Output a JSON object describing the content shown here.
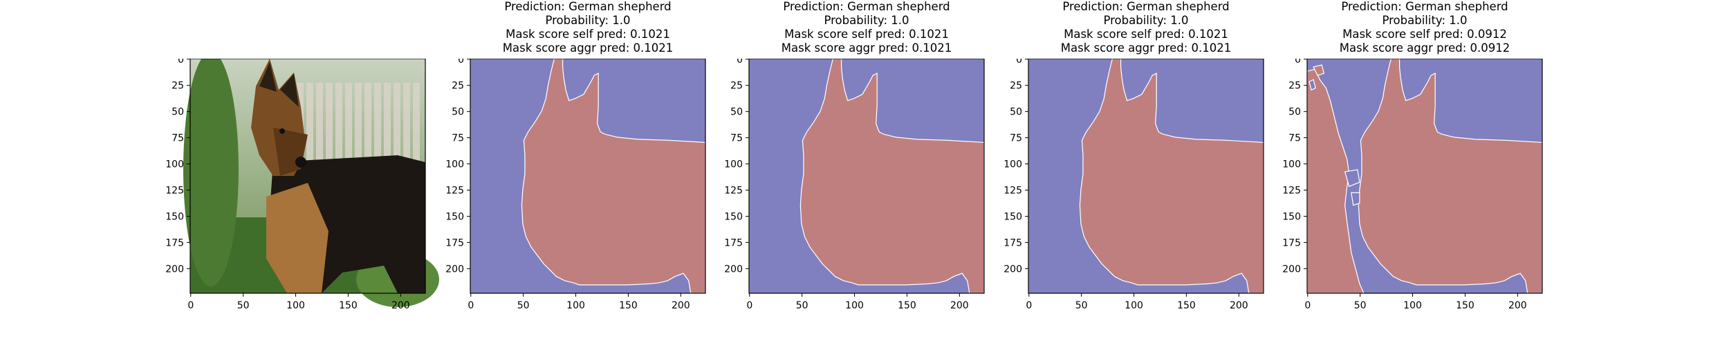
{
  "figure": {
    "panels": [
      {
        "kind": "image",
        "title_lines": [],
        "xticks": [
          "0",
          "50",
          "100",
          "150",
          "200"
        ],
        "yticks": [
          "0",
          "25",
          "50",
          "75",
          "100",
          "125",
          "150",
          "175",
          "200"
        ]
      },
      {
        "kind": "mask",
        "variant": "clean",
        "title_lines": [
          "Prediction: German shepherd",
          "Probability: 1.0",
          "Mask score self pred: 0.1021",
          "Mask score aggr pred: 0.1021"
        ],
        "xticks": [
          "0",
          "50",
          "100",
          "150",
          "200"
        ],
        "yticks": [
          "0",
          "25",
          "50",
          "75",
          "100",
          "125",
          "150",
          "175",
          "200"
        ]
      },
      {
        "kind": "mask",
        "variant": "clean",
        "title_lines": [
          "Prediction: German shepherd",
          "Probability: 1.0",
          "Mask score self pred: 0.1021",
          "Mask score aggr pred: 0.1021"
        ],
        "xticks": [
          "0",
          "50",
          "100",
          "150",
          "200"
        ],
        "yticks": [
          "0",
          "25",
          "50",
          "75",
          "100",
          "125",
          "150",
          "175",
          "200"
        ]
      },
      {
        "kind": "mask",
        "variant": "clean",
        "title_lines": [
          "Prediction: German shepherd",
          "Probability: 1.0",
          "Mask score self pred: 0.1021",
          "Mask score aggr pred: 0.1021"
        ],
        "xticks": [
          "0",
          "50",
          "100",
          "150",
          "200"
        ],
        "yticks": [
          "0",
          "25",
          "50",
          "75",
          "100",
          "125",
          "150",
          "175",
          "200"
        ]
      },
      {
        "kind": "mask",
        "variant": "noisy",
        "title_lines": [
          "Prediction: German shepherd",
          "Probability: 1.0",
          "Mask score self pred: 0.0912",
          "Mask score aggr pred: 0.0912"
        ],
        "xticks": [
          "0",
          "50",
          "100",
          "150",
          "200"
        ],
        "yticks": [
          "0",
          "25",
          "50",
          "75",
          "100",
          "125",
          "150",
          "175",
          "200"
        ]
      }
    ]
  },
  "colors": {
    "mask_background": "#8080c0",
    "mask_foreground": "#c07f7f",
    "axis": "#000000"
  }
}
